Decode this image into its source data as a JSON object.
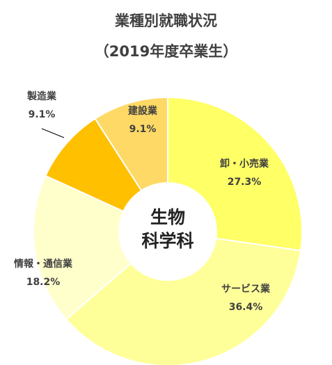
{
  "chart_data": {
    "type": "pie",
    "style": "donut",
    "title": "業種別就職状況",
    "subtitle": "（2019年度卒業生）",
    "center_label": [
      "生物",
      "科学科"
    ],
    "categories": [
      "卸・小売業",
      "サービス業",
      "情報・通信業",
      "製造業",
      "建設業"
    ],
    "values": [
      27.3,
      36.4,
      18.2,
      9.1,
      9.1
    ],
    "value_labels": [
      "27.3%",
      "36.4%",
      "18.2%",
      "9.1%",
      "9.1%"
    ],
    "colors": [
      "#FFFF66",
      "#FFFF99",
      "#FFFFCC",
      "#FFC000",
      "#FFD966"
    ],
    "start_angle_deg": 0,
    "direction": "clockwise"
  }
}
